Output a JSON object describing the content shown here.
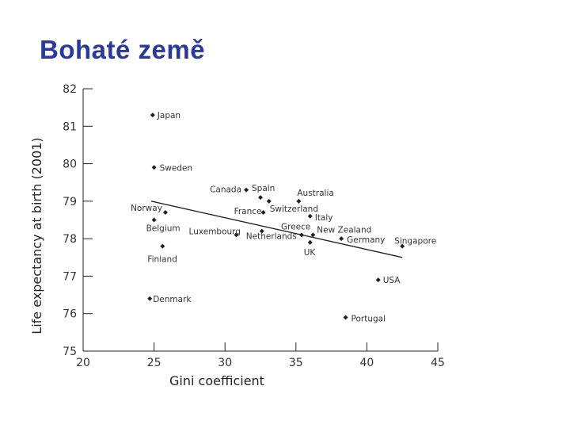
{
  "slide": {
    "title": "Bohaté země"
  },
  "chart_data": {
    "type": "scatter",
    "title": "",
    "xlabel": "Gini coefficient",
    "ylabel": "Life expectancy at birth (2001)",
    "xlim": [
      20,
      45
    ],
    "ylim": [
      75,
      82
    ],
    "xticks": [
      20,
      25,
      30,
      35,
      40,
      45
    ],
    "yticks": [
      75,
      76,
      77,
      78,
      79,
      80,
      81,
      82
    ],
    "grid": false,
    "colors": {
      "marker": "#222222",
      "line": "#222222",
      "text": "#333333"
    },
    "points": [
      {
        "label": "Japan",
        "x": 24.9,
        "y": 81.3
      },
      {
        "label": "Sweden",
        "x": 25.0,
        "y": 79.9
      },
      {
        "label": "Norway",
        "x": 25.8,
        "y": 78.7
      },
      {
        "label": "Belgium",
        "x": 25.0,
        "y": 78.5
      },
      {
        "label": "Finland",
        "x": 25.6,
        "y": 77.8
      },
      {
        "label": "Denmark",
        "x": 24.7,
        "y": 76.4
      },
      {
        "label": "Luxembourg",
        "x": 30.8,
        "y": 78.1
      },
      {
        "label": "Canada",
        "x": 31.5,
        "y": 79.3
      },
      {
        "label": "Spain",
        "x": 32.5,
        "y": 79.1
      },
      {
        "label": "France",
        "x": 32.7,
        "y": 78.7
      },
      {
        "label": "Netherlands",
        "x": 32.6,
        "y": 78.2
      },
      {
        "label": "Switzerland",
        "x": 33.1,
        "y": 79.0
      },
      {
        "label": "Australia",
        "x": 35.2,
        "y": 79.0
      },
      {
        "label": "Italy",
        "x": 36.0,
        "y": 78.6
      },
      {
        "label": "Greece",
        "x": 35.4,
        "y": 78.1
      },
      {
        "label": "New Zealand",
        "x": 36.2,
        "y": 78.1
      },
      {
        "label": "UK",
        "x": 36.0,
        "y": 77.9
      },
      {
        "label": "Germany",
        "x": 38.2,
        "y": 78.0
      },
      {
        "label": "Singapore",
        "x": 42.5,
        "y": 77.8
      },
      {
        "label": "USA",
        "x": 40.8,
        "y": 76.9
      },
      {
        "label": "Portugal",
        "x": 38.5,
        "y": 75.9
      }
    ],
    "trendline": {
      "x": [
        24.8,
        42.5
      ],
      "y": [
        79.0,
        77.5
      ]
    }
  }
}
